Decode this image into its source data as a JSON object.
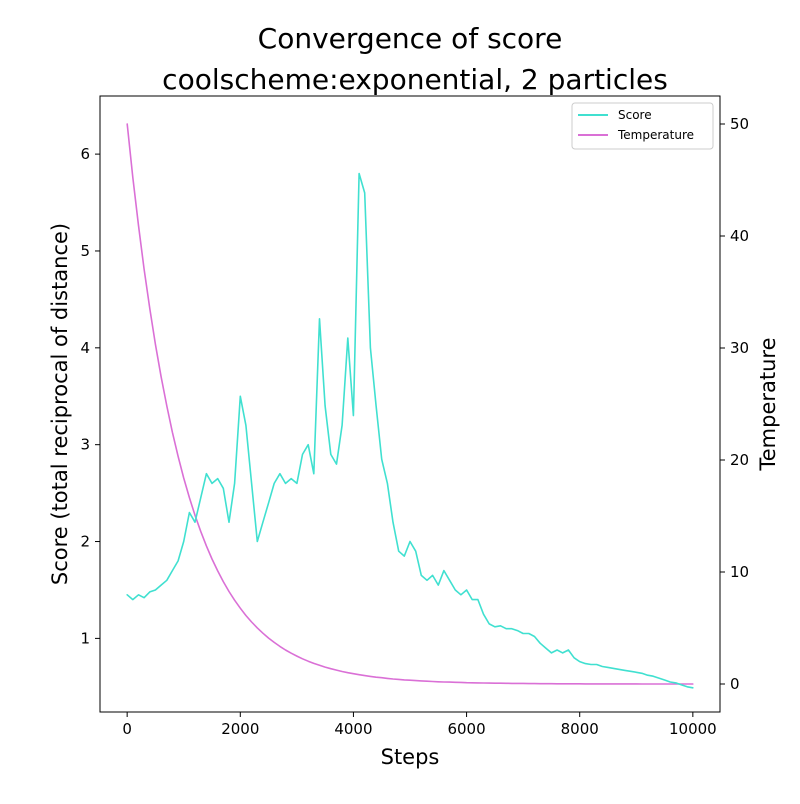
{
  "chart_data": {
    "type": "line",
    "title": [
      "Convergence of score",
      "coolscheme:exponential, 2 particles"
    ],
    "xlabel": "Steps",
    "ylabel_left": "Score (total reciprocal of distance)",
    "ylabel_right": "Temperature",
    "xlim": [
      -480,
      10480
    ],
    "ylim_left": [
      0.24,
      6.6
    ],
    "ylim_right": [
      -2.5,
      52.5
    ],
    "x_ticks": [
      0,
      2000,
      4000,
      6000,
      8000,
      10000
    ],
    "y_left_ticks": [
      1,
      2,
      3,
      4,
      5,
      6
    ],
    "y_right_ticks": [
      0,
      10,
      20,
      30,
      40,
      50
    ],
    "legend_position": "upper right",
    "grid": false,
    "series": [
      {
        "name": "Score",
        "axis": "left",
        "color": "#40e0d0",
        "x": [
          0,
          100,
          200,
          300,
          400,
          500,
          600,
          700,
          800,
          900,
          1000,
          1100,
          1200,
          1300,
          1400,
          1500,
          1600,
          1700,
          1800,
          1900,
          2000,
          2100,
          2200,
          2300,
          2400,
          2500,
          2600,
          2700,
          2800,
          2900,
          3000,
          3100,
          3200,
          3300,
          3400,
          3500,
          3600,
          3700,
          3800,
          3900,
          4000,
          4100,
          4200,
          4300,
          4400,
          4500,
          4600,
          4700,
          4800,
          4900,
          5000,
          5100,
          5200,
          5300,
          5400,
          5500,
          5600,
          5700,
          5800,
          5900,
          6000,
          6100,
          6200,
          6300,
          6400,
          6500,
          6600,
          6700,
          6800,
          6900,
          7000,
          7100,
          7200,
          7300,
          7400,
          7500,
          7600,
          7700,
          7800,
          7900,
          8000,
          8100,
          8200,
          8300,
          8400,
          8500,
          8600,
          8700,
          8800,
          8900,
          9000,
          9100,
          9200,
          9300,
          9400,
          9500,
          9600,
          9700,
          9800,
          9900,
          10000
        ],
        "values": [
          1.45,
          1.4,
          1.45,
          1.42,
          1.48,
          1.5,
          1.55,
          1.6,
          1.7,
          1.8,
          2.0,
          2.3,
          2.2,
          2.45,
          2.7,
          2.6,
          2.65,
          2.55,
          2.2,
          2.6,
          3.5,
          3.2,
          2.6,
          2.0,
          2.2,
          2.4,
          2.6,
          2.7,
          2.6,
          2.65,
          2.6,
          2.9,
          3.0,
          2.7,
          4.3,
          3.4,
          2.9,
          2.8,
          3.2,
          4.1,
          3.3,
          5.8,
          5.6,
          4.0,
          3.4,
          2.85,
          2.6,
          2.2,
          1.9,
          1.85,
          2.0,
          1.9,
          1.65,
          1.6,
          1.65,
          1.55,
          1.7,
          1.6,
          1.5,
          1.45,
          1.5,
          1.4,
          1.4,
          1.25,
          1.15,
          1.12,
          1.13,
          1.1,
          1.1,
          1.08,
          1.05,
          1.05,
          1.02,
          0.95,
          0.9,
          0.85,
          0.88,
          0.85,
          0.88,
          0.8,
          0.76,
          0.74,
          0.73,
          0.73,
          0.71,
          0.7,
          0.69,
          0.68,
          0.67,
          0.66,
          0.65,
          0.64,
          0.62,
          0.61,
          0.59,
          0.57,
          0.55,
          0.54,
          0.52,
          0.5,
          0.49
        ]
      },
      {
        "name": "Temperature",
        "axis": "right",
        "color": "#da70d6",
        "x": [
          0,
          100,
          200,
          300,
          400,
          500,
          600,
          700,
          800,
          900,
          1000,
          1100,
          1200,
          1300,
          1400,
          1500,
          1600,
          1700,
          1800,
          1900,
          2000,
          2100,
          2200,
          2300,
          2400,
          2500,
          2600,
          2700,
          2800,
          2900,
          3000,
          3100,
          3200,
          3300,
          3400,
          3500,
          3600,
          3700,
          3800,
          3900,
          4000,
          4100,
          4200,
          4300,
          4400,
          4500,
          4600,
          4700,
          4800,
          4900,
          5000,
          5100,
          5200,
          5300,
          5400,
          5500,
          5600,
          5700,
          5800,
          5900,
          6000,
          6100,
          6200,
          6300,
          6400,
          6500,
          6600,
          6700,
          6800,
          6900,
          7000,
          7100,
          7200,
          7300,
          7400,
          7500,
          7600,
          7700,
          7800,
          7900,
          8000,
          8100,
          8200,
          8300,
          8400,
          8500,
          8600,
          8700,
          8800,
          8900,
          9000,
          9100,
          9200,
          9300,
          9400,
          9500,
          9600,
          9700,
          9800,
          9900,
          10000
        ],
        "values": [
          50.0,
          45.24,
          40.94,
          37.04,
          33.52,
          30.33,
          27.44,
          24.83,
          22.47,
          20.33,
          18.39,
          16.64,
          15.06,
          13.63,
          12.33,
          11.16,
          10.1,
          9.14,
          8.26,
          7.48,
          6.77,
          6.12,
          5.54,
          5.01,
          4.54,
          4.1,
          3.71,
          3.36,
          3.04,
          2.75,
          2.49,
          2.25,
          2.04,
          1.84,
          1.67,
          1.51,
          1.37,
          1.24,
          1.12,
          1.01,
          0.92,
          0.83,
          0.75,
          0.68,
          0.61,
          0.56,
          0.5,
          0.45,
          0.41,
          0.37,
          0.34,
          0.3,
          0.28,
          0.25,
          0.22,
          0.2,
          0.18,
          0.17,
          0.15,
          0.14,
          0.12,
          0.11,
          0.1,
          0.09,
          0.08,
          0.07,
          0.07,
          0.06,
          0.05,
          0.05,
          0.05,
          0.04,
          0.04,
          0.03,
          0.03,
          0.03,
          0.02,
          0.02,
          0.02,
          0.02,
          0.02,
          0.01,
          0.01,
          0.01,
          0.01,
          0.01,
          0.01,
          0.01,
          0.01,
          0.01,
          0.01,
          0.0,
          0.0,
          0.0,
          0.0,
          0.0,
          0.0,
          0.0,
          0.0,
          0.0,
          0.0
        ]
      }
    ]
  }
}
